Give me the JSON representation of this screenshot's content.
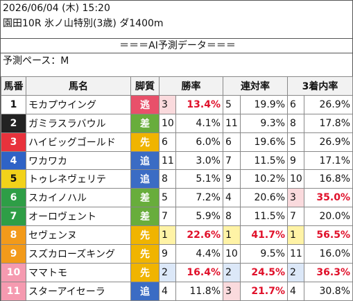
{
  "header": {
    "datetime": "2026/06/04 (木) 15:20",
    "race": "園田10R 氷ノ山特別(3歳) ダ1400m",
    "banner": "＝＝＝AI予測データ＝＝＝",
    "pace": "予測ペース：M"
  },
  "table": {
    "columns": [
      "馬番",
      "馬名",
      "脚質",
      "勝率",
      "連対率",
      "3着内率"
    ],
    "rows": [
      [
        1,
        "モカプウイング",
        "逃",
        3,
        "13.4%",
        5,
        "19.9%",
        6,
        "26.9%"
      ],
      [
        2,
        "ガミラスラバウル",
        "差",
        10,
        "4.1%",
        11,
        "9.3%",
        8,
        "17.8%"
      ],
      [
        3,
        "ハイビッグゴールド",
        "先",
        6,
        "6.0%",
        6,
        "19.6%",
        5,
        "26.9%"
      ],
      [
        4,
        "ワカワカ",
        "追",
        11,
        "3.0%",
        7,
        "11.5%",
        9,
        "17.1%"
      ],
      [
        5,
        "トゥレネヴェリテ",
        "追",
        8,
        "5.1%",
        9,
        "10.2%",
        10,
        "16.8%"
      ],
      [
        6,
        "スカイノハル",
        "差",
        5,
        "7.2%",
        4,
        "20.6%",
        3,
        "35.0%"
      ],
      [
        7,
        "オーロヴェント",
        "差",
        7,
        "5.9%",
        8,
        "11.5%",
        7,
        "20.0%"
      ],
      [
        8,
        "セヴェンヌ",
        "先",
        1,
        "22.6%",
        1,
        "41.7%",
        1,
        "56.5%"
      ],
      [
        9,
        "スズカローズキング",
        "先",
        9,
        "4.4%",
        10,
        "9.5%",
        11,
        "16.0%"
      ],
      [
        10,
        "ママトモ",
        "先",
        2,
        "16.4%",
        2,
        "24.5%",
        2,
        "36.3%"
      ],
      [
        11,
        "スターアイセーラ",
        "追",
        4,
        "11.8%",
        3,
        "21.7%",
        4,
        "30.8%"
      ]
    ]
  }
}
